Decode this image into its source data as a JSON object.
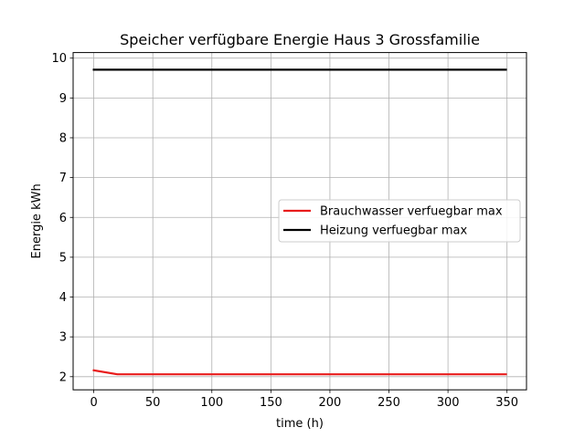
{
  "chart_data": {
    "type": "line",
    "title": "Speicher verfügbare Energie Haus 3 Grossfamilie",
    "xlabel": "time (h)",
    "ylabel": "Energie kWh",
    "xlim": [
      -17.5,
      366.5
    ],
    "ylim": [
      1.67,
      10.14
    ],
    "xticks": [
      0,
      50,
      100,
      150,
      200,
      250,
      300,
      350
    ],
    "yticks": [
      2,
      3,
      4,
      5,
      6,
      7,
      8,
      9,
      10
    ],
    "grid": true,
    "legend_position": "center-right",
    "series": [
      {
        "name": "Brauchwasser verfuegbar max",
        "color": "#e81c1c",
        "x": [
          0,
          20,
          50,
          100,
          150,
          200,
          250,
          300,
          349
        ],
        "y": [
          2.16,
          2.06,
          2.06,
          2.06,
          2.06,
          2.06,
          2.06,
          2.06,
          2.06
        ]
      },
      {
        "name": "Heizung verfuegbar max",
        "color": "#000000",
        "x": [
          0,
          50,
          100,
          150,
          200,
          250,
          300,
          349
        ],
        "y": [
          9.71,
          9.71,
          9.71,
          9.71,
          9.71,
          9.71,
          9.71,
          9.71
        ]
      }
    ]
  }
}
